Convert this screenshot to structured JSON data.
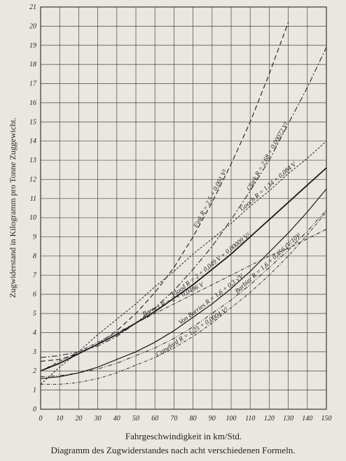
{
  "chart_data": {
    "type": "line",
    "caption": "Diagramm des Zugwiderstandes nach acht verschiedenen Formeln.",
    "x_label": "Fahrgeschwindigkeit in km/Std.",
    "y_label": "Zugwiderstand in Kilogramm pro Tonne Zuggewicht.",
    "x": [
      0,
      10,
      20,
      30,
      40,
      50,
      60,
      70,
      80,
      90,
      100,
      110,
      120,
      130,
      140,
      150
    ],
    "xlim": [
      0,
      150
    ],
    "xticks": [
      0,
      10,
      20,
      30,
      40,
      50,
      60,
      70,
      80,
      90,
      100,
      110,
      120,
      130,
      140,
      150
    ],
    "ylim": [
      0,
      21
    ],
    "yticks": [
      0,
      1,
      2,
      3,
      4,
      5,
      6,
      7,
      8,
      9,
      10,
      11,
      12,
      13,
      14,
      15,
      16,
      17,
      18,
      19,
      20,
      21
    ],
    "grid": true,
    "series": [
      {
        "name": "Fink R = 2,5 + 0,001 V²",
        "color": "#2a2a2a",
        "dash": "7 4",
        "width": 1.2,
        "values": [
          2.5,
          2.6,
          2.9,
          3.4,
          4.1,
          5.0,
          6.1,
          7.4,
          9.0,
          10.8,
          12.8,
          15.0,
          17.5,
          20.2,
          null,
          null
        ]
      },
      {
        "name": "Clark R = 2,68 + 0,00072 V²",
        "color": "#2a2a2a",
        "dash": "8 3 2 3",
        "width": 1.1,
        "values": [
          2.7,
          2.8,
          3.0,
          3.3,
          3.8,
          4.5,
          5.3,
          6.2,
          7.3,
          8.5,
          9.9,
          11.4,
          13.0,
          14.9,
          16.8,
          18.9
        ]
      },
      {
        "name": "Gooch R = 1,34 + 0,084 V",
        "color": "#2a2a2a",
        "dash": "3 2",
        "width": 1,
        "values": [
          1.3,
          2.2,
          3.0,
          3.9,
          4.7,
          5.5,
          6.4,
          7.2,
          8.1,
          8.9,
          9.7,
          10.6,
          11.4,
          12.3,
          13.1,
          14.0
        ]
      },
      {
        "name": "Flood R = 2 + 0,049 V + 0,00009 V²",
        "color": "#1a1a1a",
        "dash": "none",
        "width": 1.8,
        "values": [
          2.0,
          2.4,
          2.9,
          3.4,
          3.9,
          4.5,
          5.1,
          5.8,
          6.5,
          7.3,
          8.1,
          9.0,
          9.9,
          10.8,
          11.7,
          12.6
        ]
      },
      {
        "name": "Barnes R = 2 + 0,0496 V",
        "color": "#2a2a2a",
        "dash": "5 2 1 2",
        "width": 1,
        "values": [
          2.0,
          2.5,
          3.0,
          3.5,
          4.0,
          4.5,
          5.0,
          5.5,
          6.0,
          6.5,
          7.0,
          7.5,
          8.0,
          8.4,
          8.9,
          9.4
        ]
      },
      {
        "name": "Von Borries R = 1,6 + 0,3 √V",
        "color": "#1a1a1a",
        "dash": "none",
        "width": 1.2,
        "values": [
          1.6,
          1.7,
          1.9,
          2.2,
          2.6,
          3.0,
          3.5,
          4.1,
          4.8,
          5.5,
          6.3,
          7.2,
          8.2,
          9.2,
          10.3,
          11.5
        ]
      },
      {
        "name": "Barbier R = 1,6 + 0,456 (V/10)²",
        "color": "#2a2a2a",
        "dash": "6 2 1 2 1 2",
        "width": 1,
        "values": [
          1.7,
          1.75,
          1.9,
          2.1,
          2.4,
          2.8,
          3.2,
          3.7,
          4.3,
          5.0,
          5.7,
          6.5,
          7.4,
          8.3,
          9.3,
          10.4
        ]
      },
      {
        "name": "Crawford R = 1,25 + 0,0004 V²",
        "color": "#2a2a2a",
        "dash": "4 2 1 2",
        "width": 1,
        "values": [
          1.3,
          1.3,
          1.4,
          1.6,
          1.9,
          2.3,
          2.7,
          3.2,
          3.8,
          4.5,
          5.3,
          6.1,
          7.0,
          8.0,
          9.1,
          10.3
        ]
      }
    ]
  }
}
